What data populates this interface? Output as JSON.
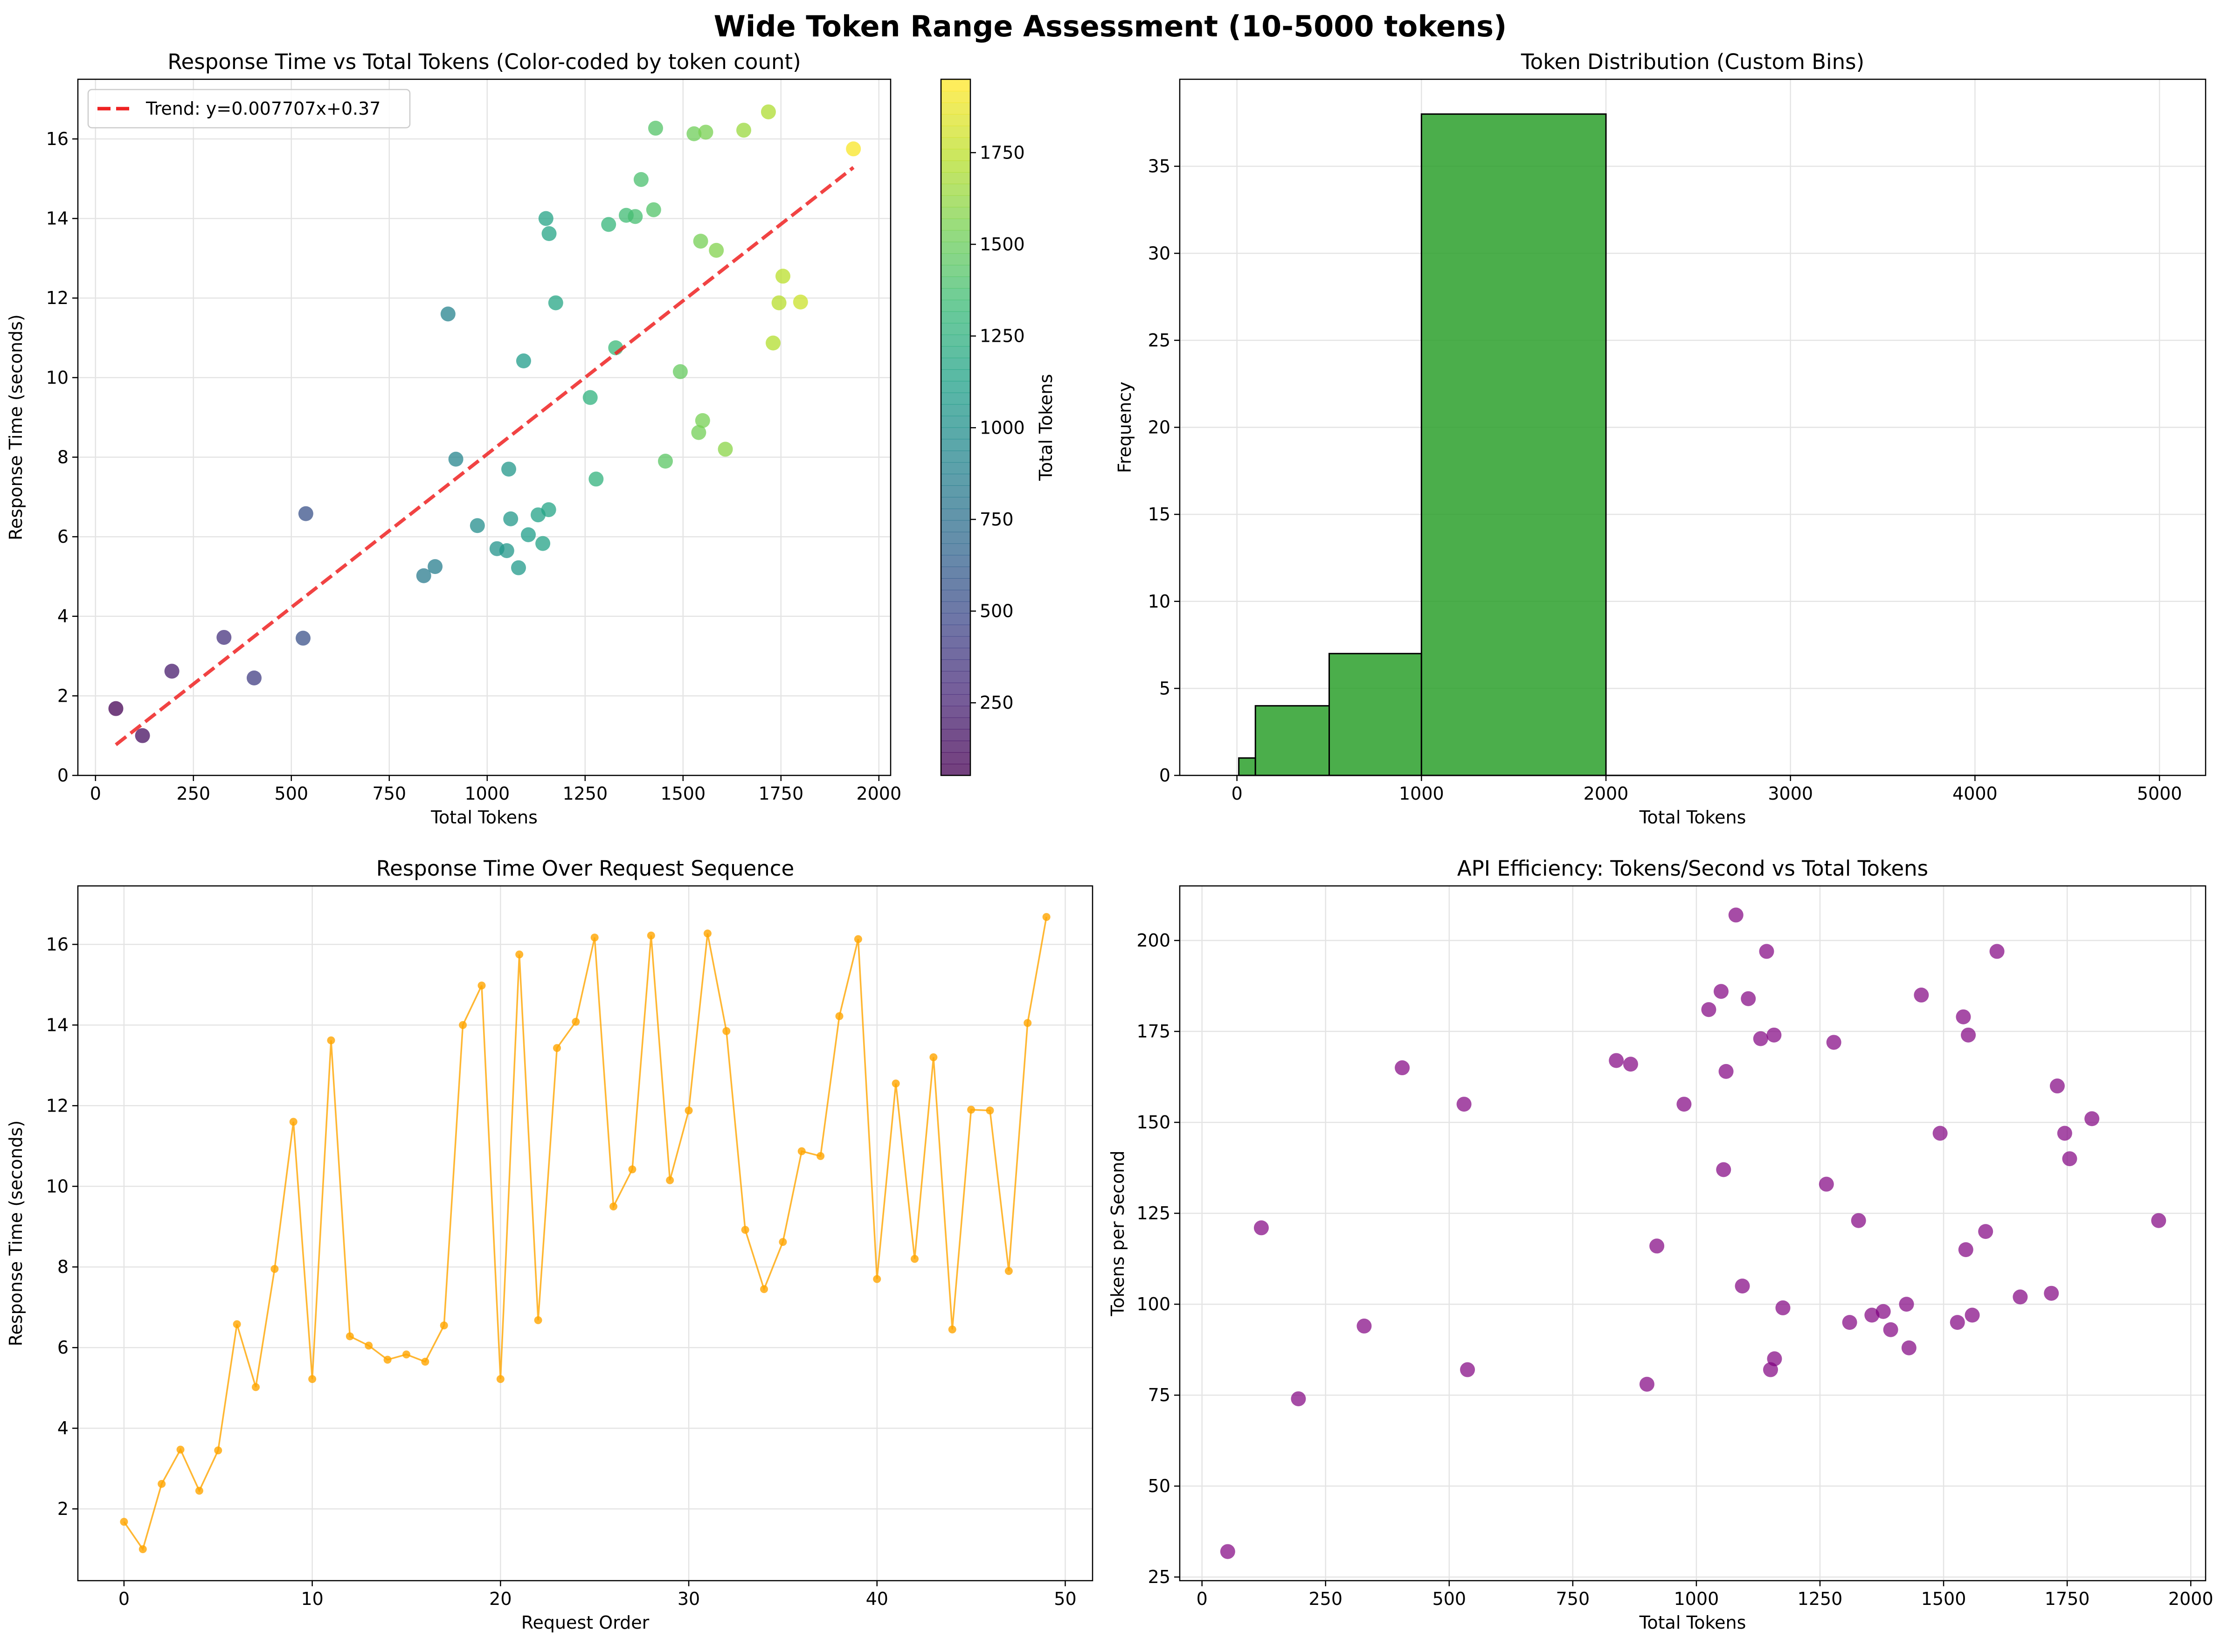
{
  "figure": {
    "title": "Wide Token Range Assessment (10-5000 tokens)"
  },
  "chart_data": [
    {
      "id": "scatter",
      "type": "scatter",
      "title": "Response Time vs Total Tokens (Color-coded by token count)",
      "xlabel": "Total Tokens",
      "ylabel": "Response Time (seconds)",
      "xlim": [
        -45,
        2030
      ],
      "ylim": [
        0,
        17.5
      ],
      "xticks": [
        0,
        250,
        500,
        750,
        1000,
        1250,
        1500,
        1750,
        2000
      ],
      "yticks": [
        0,
        2,
        4,
        6,
        8,
        10,
        12,
        14,
        16
      ],
      "grid": true,
      "legend": {
        "position": "top-left",
        "entries": [
          "Trend: y=0.007707x+0.37"
        ]
      },
      "trend": {
        "label": "Trend: y=0.007707x+0.37",
        "slope": 0.007707,
        "intercept": 0.37,
        "x_range": [
          52,
          1935
        ],
        "color": "#ee2222"
      },
      "colorbar": {
        "label": "Total Tokens",
        "range": [
          52,
          1950
        ],
        "ticks": [
          250,
          500,
          750,
          1000,
          1250,
          1500,
          1750
        ],
        "colormap": "viridis"
      },
      "points": [
        {
          "x": 52,
          "y": 1.68
        },
        {
          "x": 120,
          "y": 1.0
        },
        {
          "x": 195,
          "y": 2.62
        },
        {
          "x": 328,
          "y": 3.47
        },
        {
          "x": 405,
          "y": 2.45
        },
        {
          "x": 530,
          "y": 3.45
        },
        {
          "x": 537,
          "y": 6.58
        },
        {
          "x": 838,
          "y": 5.02
        },
        {
          "x": 867,
          "y": 5.25
        },
        {
          "x": 900,
          "y": 11.6
        },
        {
          "x": 920,
          "y": 7.95
        },
        {
          "x": 975,
          "y": 6.28
        },
        {
          "x": 1025,
          "y": 5.7
        },
        {
          "x": 1050,
          "y": 5.65
        },
        {
          "x": 1055,
          "y": 7.7
        },
        {
          "x": 1060,
          "y": 6.45
        },
        {
          "x": 1080,
          "y": 5.22
        },
        {
          "x": 1093,
          "y": 10.42
        },
        {
          "x": 1105,
          "y": 6.05
        },
        {
          "x": 1130,
          "y": 6.55
        },
        {
          "x": 1142,
          "y": 5.83
        },
        {
          "x": 1150,
          "y": 14.0
        },
        {
          "x": 1157,
          "y": 6.68
        },
        {
          "x": 1158,
          "y": 13.62
        },
        {
          "x": 1175,
          "y": 11.88
        },
        {
          "x": 1263,
          "y": 9.5
        },
        {
          "x": 1278,
          "y": 7.45
        },
        {
          "x": 1310,
          "y": 13.85
        },
        {
          "x": 1328,
          "y": 10.75
        },
        {
          "x": 1355,
          "y": 14.08
        },
        {
          "x": 1378,
          "y": 14.05
        },
        {
          "x": 1393,
          "y": 14.98
        },
        {
          "x": 1425,
          "y": 14.22
        },
        {
          "x": 1430,
          "y": 16.27
        },
        {
          "x": 1455,
          "y": 7.9
        },
        {
          "x": 1493,
          "y": 10.15
        },
        {
          "x": 1528,
          "y": 16.13
        },
        {
          "x": 1540,
          "y": 8.62
        },
        {
          "x": 1545,
          "y": 13.43
        },
        {
          "x": 1550,
          "y": 8.92
        },
        {
          "x": 1558,
          "y": 16.17
        },
        {
          "x": 1585,
          "y": 13.2
        },
        {
          "x": 1608,
          "y": 8.2
        },
        {
          "x": 1655,
          "y": 16.22
        },
        {
          "x": 1718,
          "y": 16.68
        },
        {
          "x": 1730,
          "y": 10.87
        },
        {
          "x": 1745,
          "y": 11.88
        },
        {
          "x": 1755,
          "y": 12.55
        },
        {
          "x": 1800,
          "y": 11.9
        },
        {
          "x": 1935,
          "y": 15.75
        }
      ]
    },
    {
      "id": "histogram",
      "type": "bar",
      "title": "Token Distribution (Custom Bins)",
      "xlabel": "Total Tokens",
      "ylabel": "Frequency",
      "xlim": [
        -310,
        5250
      ],
      "ylim": [
        0,
        40
      ],
      "xticks": [
        0,
        1000,
        2000,
        3000,
        4000,
        5000
      ],
      "yticks": [
        0,
        5,
        10,
        15,
        20,
        25,
        30,
        35
      ],
      "grid": true,
      "color": "#2ca02c",
      "bins": [
        {
          "start": 10,
          "end": 100,
          "count": 1
        },
        {
          "start": 100,
          "end": 500,
          "count": 4
        },
        {
          "start": 500,
          "end": 1000,
          "count": 7
        },
        {
          "start": 1000,
          "end": 2000,
          "count": 38
        },
        {
          "start": 2000,
          "end": 5000,
          "count": 0
        }
      ]
    },
    {
      "id": "sequence",
      "type": "line",
      "title": "Response Time Over Request Sequence",
      "xlabel": "Request Order",
      "ylabel": "Response Time (seconds)",
      "xlim": [
        -2.45,
        51.45
      ],
      "ylim": [
        0.22,
        17.45
      ],
      "xticks": [
        0,
        10,
        20,
        30,
        40,
        50
      ],
      "yticks": [
        2,
        4,
        6,
        8,
        10,
        12,
        14,
        16
      ],
      "grid": true,
      "color": "#ffa500",
      "values": [
        1.68,
        1.0,
        2.62,
        3.47,
        2.45,
        3.45,
        6.58,
        5.02,
        7.95,
        11.6,
        5.22,
        13.62,
        6.28,
        6.05,
        5.7,
        5.83,
        5.65,
        6.55,
        14.0,
        14.98,
        5.22,
        15.75,
        6.68,
        13.43,
        14.08,
        16.17,
        9.5,
        10.42,
        16.22,
        10.15,
        11.88,
        16.27,
        13.85,
        8.92,
        7.45,
        8.62,
        10.87,
        10.75,
        14.22,
        16.13,
        7.7,
        12.55,
        8.2,
        13.2,
        6.45,
        11.9,
        11.88,
        7.9,
        14.05,
        16.68
      ]
    },
    {
      "id": "efficiency",
      "type": "scatter",
      "title": "API Efficiency: Tokens/Second vs Total Tokens",
      "xlabel": "Total Tokens",
      "ylabel": "Tokens per Second",
      "xlim": [
        -45,
        2030
      ],
      "ylim": [
        24,
        215
      ],
      "xticks": [
        0,
        250,
        500,
        750,
        1000,
        1250,
        1500,
        1750,
        2000
      ],
      "yticks": [
        25,
        50,
        75,
        100,
        125,
        150,
        175,
        200
      ],
      "grid": true,
      "color": "#800080",
      "points": [
        {
          "x": 52,
          "y": 32
        },
        {
          "x": 120,
          "y": 121
        },
        {
          "x": 195,
          "y": 74
        },
        {
          "x": 328,
          "y": 94
        },
        {
          "x": 405,
          "y": 165
        },
        {
          "x": 530,
          "y": 155
        },
        {
          "x": 537,
          "y": 82
        },
        {
          "x": 838,
          "y": 167
        },
        {
          "x": 867,
          "y": 166
        },
        {
          "x": 900,
          "y": 78
        },
        {
          "x": 920,
          "y": 116
        },
        {
          "x": 975,
          "y": 155
        },
        {
          "x": 1025,
          "y": 181
        },
        {
          "x": 1050,
          "y": 186
        },
        {
          "x": 1055,
          "y": 137
        },
        {
          "x": 1060,
          "y": 164
        },
        {
          "x": 1080,
          "y": 207
        },
        {
          "x": 1093,
          "y": 105
        },
        {
          "x": 1105,
          "y": 184
        },
        {
          "x": 1130,
          "y": 173
        },
        {
          "x": 1142,
          "y": 197
        },
        {
          "x": 1150,
          "y": 82
        },
        {
          "x": 1157,
          "y": 174
        },
        {
          "x": 1158,
          "y": 85
        },
        {
          "x": 1175,
          "y": 99
        },
        {
          "x": 1263,
          "y": 133
        },
        {
          "x": 1278,
          "y": 172
        },
        {
          "x": 1310,
          "y": 95
        },
        {
          "x": 1328,
          "y": 123
        },
        {
          "x": 1355,
          "y": 97
        },
        {
          "x": 1378,
          "y": 98
        },
        {
          "x": 1393,
          "y": 93
        },
        {
          "x": 1425,
          "y": 100
        },
        {
          "x": 1430,
          "y": 88
        },
        {
          "x": 1455,
          "y": 185
        },
        {
          "x": 1493,
          "y": 147
        },
        {
          "x": 1528,
          "y": 95
        },
        {
          "x": 1540,
          "y": 179
        },
        {
          "x": 1545,
          "y": 115
        },
        {
          "x": 1550,
          "y": 174
        },
        {
          "x": 1558,
          "y": 97
        },
        {
          "x": 1585,
          "y": 120
        },
        {
          "x": 1608,
          "y": 197
        },
        {
          "x": 1655,
          "y": 102
        },
        {
          "x": 1718,
          "y": 103
        },
        {
          "x": 1730,
          "y": 160
        },
        {
          "x": 1745,
          "y": 147
        },
        {
          "x": 1755,
          "y": 140
        },
        {
          "x": 1800,
          "y": 151
        },
        {
          "x": 1935,
          "y": 123
        }
      ]
    }
  ]
}
